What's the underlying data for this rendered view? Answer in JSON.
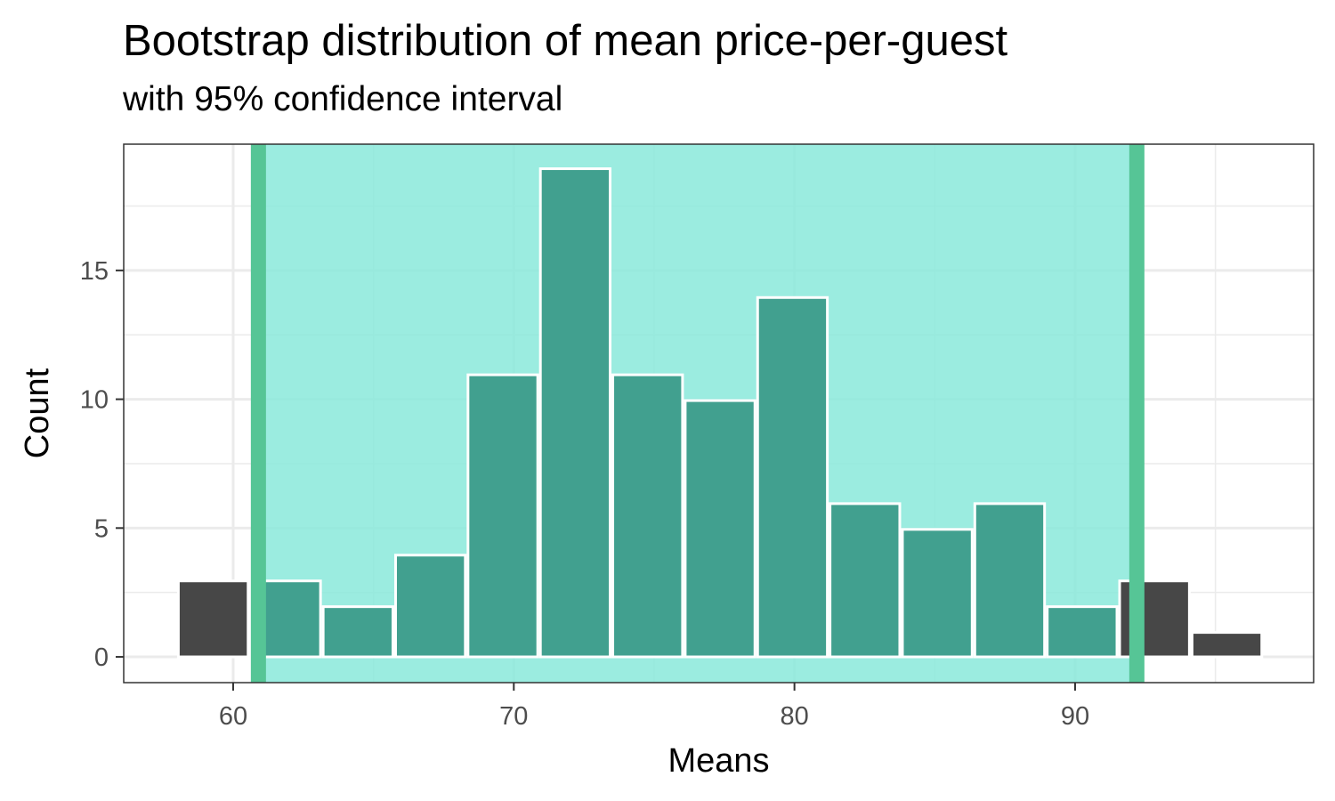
{
  "chart_data": {
    "type": "bar",
    "title": "Bootstrap distribution of mean price-per-guest",
    "subtitle": "with 95% confidence interval",
    "xlabel": "Means",
    "ylabel": "Count",
    "xlim": [
      56.1,
      98.5
    ],
    "ylim": [
      -1,
      19.9
    ],
    "xticks": [
      60,
      70,
      80,
      90
    ],
    "yticks": [
      0,
      5,
      10,
      15
    ],
    "grid": true,
    "bin_width": 2.58,
    "bins": [
      {
        "x_start": 58.0,
        "x_end": 60.58,
        "count": 3
      },
      {
        "x_start": 60.58,
        "x_end": 63.16,
        "count": 3
      },
      {
        "x_start": 63.16,
        "x_end": 65.74,
        "count": 2
      },
      {
        "x_start": 65.74,
        "x_end": 68.32,
        "count": 4
      },
      {
        "x_start": 68.32,
        "x_end": 70.9,
        "count": 11
      },
      {
        "x_start": 70.9,
        "x_end": 73.48,
        "count": 19
      },
      {
        "x_start": 73.48,
        "x_end": 76.06,
        "count": 11
      },
      {
        "x_start": 76.06,
        "x_end": 78.64,
        "count": 10
      },
      {
        "x_start": 78.64,
        "x_end": 81.22,
        "count": 14
      },
      {
        "x_start": 81.22,
        "x_end": 83.8,
        "count": 6
      },
      {
        "x_start": 83.8,
        "x_end": 86.38,
        "count": 5
      },
      {
        "x_start": 86.38,
        "x_end": 88.96,
        "count": 6
      },
      {
        "x_start": 88.96,
        "x_end": 91.54,
        "count": 2
      },
      {
        "x_start": 91.54,
        "x_end": 94.12,
        "count": 3
      },
      {
        "x_start": 94.12,
        "x_end": 96.7,
        "count": 1
      }
    ],
    "confidence_interval": {
      "level": 0.95,
      "lower": 60.9,
      "upper": 92.2
    },
    "colors": {
      "ci_fill": "#8ae9db",
      "ci_bar": "#41a08f",
      "outside_bar": "#474747",
      "ci_line": "#56c596",
      "grid": "#ebebeb",
      "panel_border": "#333333"
    }
  }
}
